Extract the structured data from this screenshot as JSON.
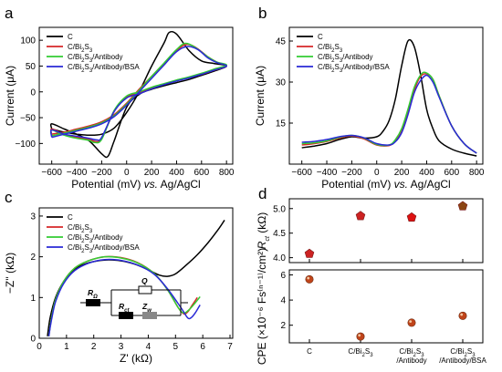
{
  "panels": [
    {
      "letter": "a",
      "type": "line",
      "xlabel": "Potential (mV) vs. Ag/AgCl",
      "ylabel": "Current (μA)",
      "xlim": [
        -700,
        850
      ],
      "ylim": [
        -140,
        125
      ],
      "xticks": [
        -600,
        -400,
        -200,
        0,
        200,
        400,
        600,
        800
      ],
      "yticks": [
        -100,
        -50,
        0,
        50,
        100
      ],
      "legend": [
        "C",
        "C/Bi₂S₃",
        "C/Bi₂S₃/Antibody",
        "C/Bi₂S₃/Antibody/BSA"
      ],
      "series": [
        {
          "name": "C",
          "color": "#000000",
          "closed": true,
          "x": [
            -600,
            -500,
            -400,
            -300,
            -200,
            -100,
            0,
            100,
            200,
            300,
            340,
            400,
            500,
            600,
            700,
            800,
            700,
            600,
            500,
            400,
            300,
            200,
            100,
            0,
            -100,
            -150,
            -200,
            -300,
            -400,
            -500,
            -600
          ],
          "y": [
            -72,
            -78,
            -82,
            -84,
            -82,
            -70,
            -40,
            0,
            50,
            95,
            115,
            112,
            80,
            60,
            55,
            50,
            40,
            32,
            24,
            18,
            12,
            5,
            -5,
            -30,
            -95,
            -125,
            -120,
            -95,
            -82,
            -72,
            -62
          ]
        },
        {
          "name": "C/Bi₂S₃",
          "color": "#d62728",
          "closed": true,
          "x": [
            -600,
            -500,
            -400,
            -300,
            -200,
            -100,
            0,
            100,
            200,
            300,
            400,
            480,
            560,
            650,
            720,
            800,
            700,
            600,
            500,
            400,
            300,
            200,
            100,
            0,
            -100,
            -200,
            -250,
            -300,
            -400,
            -500,
            -600
          ],
          "y": [
            -82,
            -78,
            -72,
            -66,
            -58,
            -44,
            -22,
            5,
            30,
            55,
            80,
            92,
            85,
            68,
            58,
            50,
            42,
            34,
            28,
            22,
            15,
            8,
            -2,
            -10,
            -38,
            -90,
            -96,
            -92,
            -88,
            -82,
            -72
          ]
        },
        {
          "name": "C/Bi₂S₃/Antibody",
          "color": "#33cc33",
          "closed": true,
          "x": [
            -600,
            -500,
            -400,
            -300,
            -200,
            -100,
            0,
            100,
            200,
            300,
            400,
            470,
            550,
            650,
            720,
            800,
            700,
            600,
            500,
            400,
            300,
            200,
            100,
            0,
            -100,
            -200,
            -260,
            -300,
            -400,
            -500,
            -600
          ],
          "y": [
            -85,
            -80,
            -74,
            -68,
            -60,
            -46,
            -24,
            3,
            30,
            56,
            82,
            94,
            86,
            68,
            58,
            52,
            44,
            36,
            29,
            23,
            16,
            9,
            0,
            -8,
            -36,
            -92,
            -98,
            -94,
            -90,
            -84,
            -74
          ]
        },
        {
          "name": "C/Bi₂S₃/Antibody/BSA",
          "color": "#2a2ad6",
          "closed": true,
          "x": [
            -600,
            -500,
            -400,
            -300,
            -200,
            -100,
            0,
            100,
            200,
            300,
            400,
            490,
            570,
            650,
            720,
            800,
            700,
            600,
            500,
            400,
            300,
            200,
            100,
            0,
            -100,
            -200,
            -240,
            -300,
            -400,
            -500,
            -600
          ],
          "y": [
            -88,
            -82,
            -76,
            -70,
            -62,
            -48,
            -26,
            0,
            26,
            52,
            78,
            88,
            82,
            66,
            57,
            50,
            42,
            34,
            27,
            21,
            14,
            6,
            -4,
            -12,
            -38,
            -88,
            -93,
            -90,
            -86,
            -82,
            -74
          ]
        }
      ]
    },
    {
      "letter": "b",
      "type": "line",
      "xlabel": "Potential (mV) vs. Ag/AgCl",
      "ylabel": "Current (μA)",
      "xlim": [
        -700,
        850
      ],
      "ylim": [
        0,
        50
      ],
      "xticks": [
        -600,
        -400,
        -200,
        0,
        200,
        400,
        600,
        800
      ],
      "yticks": [
        15,
        30,
        45
      ],
      "legend": [
        "C",
        "C/Bi₂S₃",
        "C/Bi₂S₃/Antibody",
        "C/Bi₂S₃/Antibody/BSA"
      ],
      "series": [
        {
          "name": "C",
          "color": "#000000",
          "closed": false,
          "x": [
            -600,
            -500,
            -400,
            -300,
            -200,
            -100,
            0,
            50,
            100,
            150,
            200,
            250,
            300,
            350,
            400,
            450,
            500,
            600,
            700,
            800
          ],
          "y": [
            6,
            6.6,
            7.5,
            9,
            10,
            9.5,
            10,
            12,
            16,
            24,
            36,
            45,
            43,
            33,
            20,
            13,
            8.5,
            5.5,
            4,
            3
          ]
        },
        {
          "name": "C/Bi₂S₃",
          "color": "#d62728",
          "closed": false,
          "x": [
            -600,
            -500,
            -400,
            -300,
            -200,
            -100,
            0,
            100,
            150,
            200,
            250,
            300,
            350,
            400,
            450,
            500,
            600,
            700,
            800
          ],
          "y": [
            7,
            7.5,
            8.3,
            9.5,
            10.3,
            9.2,
            7,
            6.8,
            8.5,
            12,
            19,
            27,
            32,
            33,
            31,
            25,
            14,
            7.5,
            4
          ]
        },
        {
          "name": "C/Bi₂S₃/Antibody",
          "color": "#33cc33",
          "closed": false,
          "x": [
            -600,
            -500,
            -400,
            -300,
            -200,
            -100,
            0,
            100,
            150,
            200,
            250,
            300,
            350,
            390,
            450,
            500,
            600,
            700,
            800
          ],
          "y": [
            7.5,
            7.8,
            8.5,
            9.8,
            10.5,
            9.5,
            7.2,
            7,
            9,
            13,
            20,
            28,
            32.5,
            33.5,
            31,
            25,
            14,
            7.5,
            4
          ]
        },
        {
          "name": "C/Bi₂S₃/Antibody/BSA",
          "color": "#2a2ad6",
          "closed": false,
          "x": [
            -600,
            -500,
            -400,
            -300,
            -200,
            -100,
            0,
            100,
            150,
            200,
            250,
            300,
            350,
            400,
            450,
            500,
            600,
            700,
            800
          ],
          "y": [
            8,
            8.3,
            9,
            10,
            10.5,
            9.6,
            7.5,
            7,
            8.2,
            11.5,
            18,
            26,
            30.5,
            32.5,
            30,
            24.5,
            14,
            7.5,
            4
          ]
        }
      ]
    },
    {
      "letter": "c",
      "type": "line",
      "xlabel": "Z' (kΩ)",
      "ylabel": "−Z'' (kΩ)",
      "xlim": [
        0,
        7.1
      ],
      "ylim": [
        0,
        3.2
      ],
      "xticks": [
        0,
        1,
        2,
        3,
        4,
        5,
        6,
        7
      ],
      "yticks": [
        0,
        1,
        2,
        3
      ],
      "legend": [
        "C",
        "C/Bi₂S₃",
        "C/Bi₂S₃/Antibody",
        "C/Bi₂S₃/Antibody/BSA"
      ],
      "circuit_labels": [
        "RΩ",
        "Q",
        "Rct",
        "Zw"
      ],
      "series": [
        {
          "name": "C",
          "color": "#000000",
          "closed": false,
          "x": [
            0.3,
            0.4,
            0.6,
            0.9,
            1.3,
            1.8,
            2.4,
            3.0,
            3.5,
            4.0,
            4.4,
            4.7,
            5.0,
            5.4,
            5.8,
            6.2,
            6.6,
            6.8
          ],
          "y": [
            0.05,
            0.5,
            1.0,
            1.4,
            1.7,
            1.85,
            1.92,
            1.9,
            1.82,
            1.68,
            1.55,
            1.52,
            1.58,
            1.8,
            2.05,
            2.35,
            2.7,
            2.9
          ]
        },
        {
          "name": "C/Bi₂S₃",
          "color": "#d62728",
          "closed": false,
          "x": [
            0.35,
            0.45,
            0.6,
            0.9,
            1.3,
            1.8,
            2.4,
            3.0,
            3.6,
            4.2,
            4.7,
            5.1,
            5.3,
            5.45,
            5.6,
            5.8
          ],
          "y": [
            0.05,
            0.5,
            0.95,
            1.4,
            1.72,
            1.9,
            2.0,
            1.98,
            1.86,
            1.6,
            1.2,
            0.75,
            0.6,
            0.65,
            0.8,
            1.0
          ]
        },
        {
          "name": "C/Bi₂S₃/Antibody",
          "color": "#33cc33",
          "closed": false,
          "x": [
            0.35,
            0.45,
            0.6,
            0.9,
            1.3,
            1.8,
            2.4,
            3.0,
            3.6,
            4.2,
            4.7,
            5.1,
            5.3,
            5.5,
            5.7,
            5.9
          ],
          "y": [
            0.05,
            0.5,
            0.95,
            1.4,
            1.72,
            1.9,
            2.0,
            1.97,
            1.85,
            1.6,
            1.2,
            0.75,
            0.62,
            0.7,
            0.85,
            1.02
          ]
        },
        {
          "name": "C/Bi₂S₃/Antibody/BSA",
          "color": "#2a2ad6",
          "closed": false,
          "x": [
            0.35,
            0.45,
            0.6,
            0.9,
            1.3,
            1.8,
            2.4,
            3.0,
            3.6,
            4.2,
            4.7,
            5.2,
            5.45,
            5.6,
            5.75,
            5.9
          ],
          "y": [
            0.05,
            0.45,
            0.9,
            1.35,
            1.66,
            1.84,
            1.93,
            1.91,
            1.8,
            1.58,
            1.22,
            0.75,
            0.5,
            0.52,
            0.65,
            0.82
          ]
        }
      ]
    },
    {
      "letter": "d",
      "type": "scatter",
      "categories": [
        "C",
        "C/Bi₂S₃",
        "C/Bi₂S₃\n/Antibody",
        "C/Bi₂S₃\n/Antibody/BSA"
      ],
      "top": {
        "ylabel": "Rct (kΩ)",
        "ylim": [
          3.9,
          5.2
        ],
        "yticks": [
          4.0,
          4.5,
          5.0
        ],
        "values": [
          4.08,
          4.85,
          4.82,
          5.05
        ],
        "marker_colors": [
          "#cc2222",
          "#cc2222",
          "#dd1111",
          "#8b4513"
        ]
      },
      "bottom": {
        "ylabel": "CPE (×10⁻⁶ Fs⁽ⁿ⁻¹⁾/cm²)",
        "ylim": [
          0.6,
          6.4
        ],
        "yticks": [
          2,
          4,
          6
        ],
        "values": [
          5.65,
          1.1,
          2.2,
          2.75
        ]
      }
    }
  ]
}
